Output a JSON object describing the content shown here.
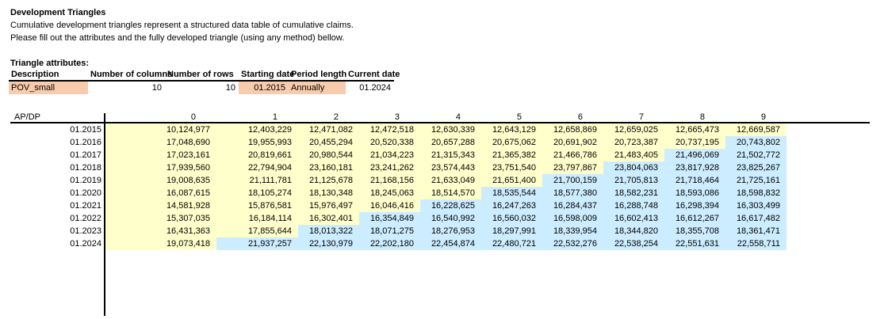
{
  "intro": {
    "title": "Development Triangles",
    "line1": "Cumulative development triangles represent a structured data table of cumulative claims.",
    "line2": "Please fill out the attributes and the fully developed triangle (using any method) bellow."
  },
  "attributes": {
    "section_title": "Triangle attributes:",
    "headers": {
      "description": "Description",
      "num_columns": "Number of columns",
      "num_rows": "Number of rows",
      "starting_date": "Starting date",
      "period_length": "Period length",
      "current_date": "Current date"
    },
    "values": {
      "description": "POV_small",
      "num_columns": "10",
      "num_rows": "10",
      "starting_date": "01.2015",
      "period_length": "Annually",
      "current_date": "01.2024"
    }
  },
  "triangle": {
    "corner_label": "AP/DP",
    "col_headers": [
      "0",
      "1",
      "2",
      "3",
      "4",
      "5",
      "6",
      "7",
      "8",
      "9"
    ],
    "rows": [
      {
        "label": "01.2015",
        "observed": 10,
        "values": [
          "10,124,977",
          "12,403,229",
          "12,471,082",
          "12,472,518",
          "12,630,339",
          "12,643,129",
          "12,658,869",
          "12,659,025",
          "12,665,473",
          "12,669,587"
        ]
      },
      {
        "label": "01.2016",
        "observed": 9,
        "values": [
          "17,048,690",
          "19,955,993",
          "20,455,294",
          "20,520,338",
          "20,657,288",
          "20,675,062",
          "20,691,902",
          "20,723,387",
          "20,737,195",
          "20,743,802"
        ]
      },
      {
        "label": "01.2017",
        "observed": 8,
        "values": [
          "17,023,161",
          "20,819,661",
          "20,980,544",
          "21,034,223",
          "21,315,343",
          "21,365,382",
          "21,466,786",
          "21,483,405",
          "21,496,069",
          "21,502,772"
        ]
      },
      {
        "label": "01.2018",
        "observed": 7,
        "values": [
          "17,939,560",
          "22,794,904",
          "23,160,181",
          "23,241,262",
          "23,574,443",
          "23,751,540",
          "23,797,867",
          "23,804,063",
          "23,817,928",
          "23,825,267"
        ]
      },
      {
        "label": "01.2019",
        "observed": 6,
        "values": [
          "19,008,635",
          "21,111,781",
          "21,125,678",
          "21,168,156",
          "21,633,049",
          "21,651,400",
          "21,700,159",
          "21,705,813",
          "21,718,464",
          "21,725,161"
        ]
      },
      {
        "label": "01.2020",
        "observed": 5,
        "values": [
          "16,087,615",
          "18,105,274",
          "18,130,348",
          "18,245,063",
          "18,514,570",
          "18,535,544",
          "18,577,380",
          "18,582,231",
          "18,593,086",
          "18,598,832"
        ]
      },
      {
        "label": "01.2021",
        "observed": 4,
        "values": [
          "14,581,928",
          "15,876,581",
          "15,976,497",
          "16,046,416",
          "16,228,625",
          "16,247,263",
          "16,284,437",
          "16,288,748",
          "16,298,394",
          "16,303,499"
        ]
      },
      {
        "label": "01.2022",
        "observed": 3,
        "values": [
          "15,307,035",
          "16,184,114",
          "16,302,401",
          "16,354,849",
          "16,540,992",
          "16,560,032",
          "16,598,009",
          "16,602,413",
          "16,612,267",
          "16,617,482"
        ]
      },
      {
        "label": "01.2023",
        "observed": 2,
        "values": [
          "16,431,363",
          "17,855,644",
          "18,013,322",
          "18,071,275",
          "18,276,953",
          "18,297,991",
          "18,339,954",
          "18,344,820",
          "18,355,708",
          "18,361,471"
        ]
      },
      {
        "label": "01.2024",
        "observed": 1,
        "values": [
          "19,073,418",
          "21,937,257",
          "22,130,979",
          "22,202,180",
          "22,454,874",
          "22,480,721",
          "22,532,276",
          "22,538,254",
          "22,551,631",
          "22,558,711"
        ]
      }
    ]
  },
  "colors": {
    "observed_fill": "#FFFFCC",
    "projected_fill": "#CCECFF",
    "input_fill": "#F8CBAD"
  }
}
